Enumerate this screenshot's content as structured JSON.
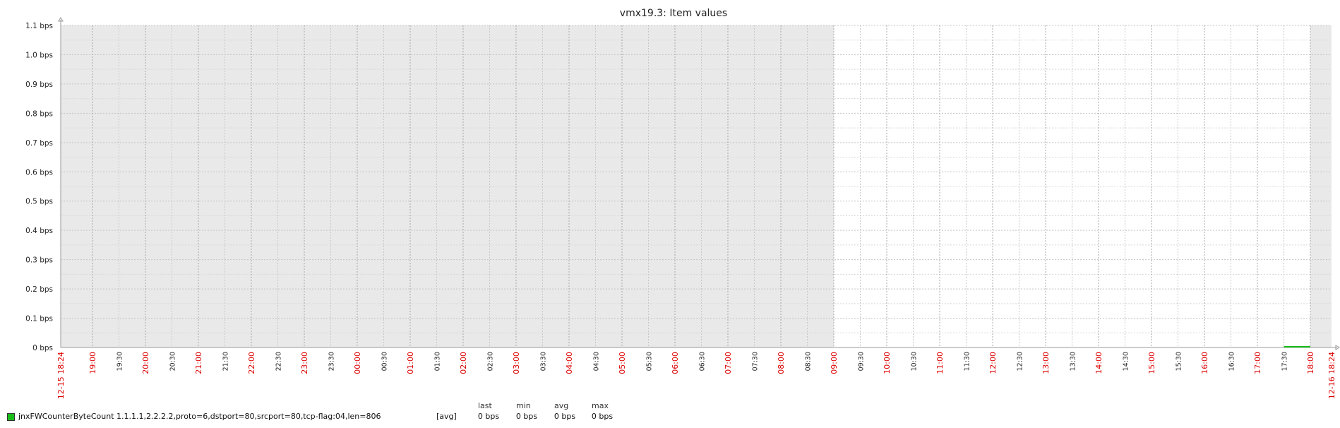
{
  "chart_data": {
    "type": "line",
    "title": "vmx19.3: Item values",
    "y_ticks": [
      "0 bps",
      "0.1 bps",
      "0.2 bps",
      "0.3 bps",
      "0.4 bps",
      "0.5 bps",
      "0.6 bps",
      "0.7 bps",
      "0.8 bps",
      "0.9 bps",
      "1.0 bps",
      "1.1 bps"
    ],
    "ylim": [
      0,
      1.1
    ],
    "x_start": "12-15 18:24",
    "x_end": "12-16 18:24",
    "x_ticks": [
      {
        "t": "19:00",
        "major": true
      },
      {
        "t": "19:30",
        "major": false
      },
      {
        "t": "20:00",
        "major": true
      },
      {
        "t": "20:30",
        "major": false
      },
      {
        "t": "21:00",
        "major": true
      },
      {
        "t": "21:30",
        "major": false
      },
      {
        "t": "22:00",
        "major": true
      },
      {
        "t": "22:30",
        "major": false
      },
      {
        "t": "23:00",
        "major": true
      },
      {
        "t": "23:30",
        "major": false
      },
      {
        "t": "00:00",
        "major": true
      },
      {
        "t": "00:30",
        "major": false
      },
      {
        "t": "01:00",
        "major": true
      },
      {
        "t": "01:30",
        "major": false
      },
      {
        "t": "02:00",
        "major": true
      },
      {
        "t": "02:30",
        "major": false
      },
      {
        "t": "03:00",
        "major": true
      },
      {
        "t": "03:30",
        "major": false
      },
      {
        "t": "04:00",
        "major": true
      },
      {
        "t": "04:30",
        "major": false
      },
      {
        "t": "05:00",
        "major": true
      },
      {
        "t": "05:30",
        "major": false
      },
      {
        "t": "06:00",
        "major": true
      },
      {
        "t": "06:30",
        "major": false
      },
      {
        "t": "07:00",
        "major": true
      },
      {
        "t": "07:30",
        "major": false
      },
      {
        "t": "08:00",
        "major": true
      },
      {
        "t": "08:30",
        "major": false
      },
      {
        "t": "09:00",
        "major": true
      },
      {
        "t": "09:30",
        "major": false
      },
      {
        "t": "10:00",
        "major": true
      },
      {
        "t": "10:30",
        "major": false
      },
      {
        "t": "11:00",
        "major": true
      },
      {
        "t": "11:30",
        "major": false
      },
      {
        "t": "12:00",
        "major": true
      },
      {
        "t": "12:30",
        "major": false
      },
      {
        "t": "13:00",
        "major": true
      },
      {
        "t": "13:30",
        "major": false
      },
      {
        "t": "14:00",
        "major": true
      },
      {
        "t": "14:30",
        "major": false
      },
      {
        "t": "15:00",
        "major": true
      },
      {
        "t": "15:30",
        "major": false
      },
      {
        "t": "16:00",
        "major": true
      },
      {
        "t": "16:30",
        "major": false
      },
      {
        "t": "17:00",
        "major": true
      },
      {
        "t": "17:30",
        "major": false
      },
      {
        "t": "18:00",
        "major": true
      }
    ],
    "shaded_ranges": [
      [
        "12-15 18:24",
        "12-16 09:00"
      ],
      [
        "12-16 18:00",
        "12-16 18:24"
      ]
    ],
    "series": [
      {
        "name": "jnxFWCounterByteCount 1.1.1.1,2.2.2.2,proto=6,dstport=80,srcport=80,tcp-flag:04,len=806",
        "color": "#1abc1a",
        "points": [
          {
            "x": "12-16 17:30",
            "y": 0
          },
          {
            "x": "12-16 18:00",
            "y": 0
          }
        ]
      }
    ],
    "grid": true,
    "legend_position": "bottom-left"
  },
  "legend": {
    "headers": {
      "last": "last",
      "min": "min",
      "avg": "avg",
      "max": "max"
    },
    "name": "jnxFWCounterByteCount 1.1.1.1,2.2.2.2,proto=6,dstport=80,srcport=80,tcp-flag:04,len=806",
    "function": "[avg]",
    "last": "0 bps",
    "min": "0 bps",
    "avg": "0 bps",
    "max": "0 bps",
    "swatch_color": "#1abc1a"
  },
  "colors": {
    "major_tick": "#dd0000",
    "minor_tick": "#222222",
    "shade": "#e9e9e9"
  }
}
